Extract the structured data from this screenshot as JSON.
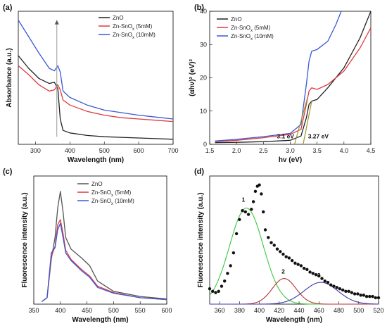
{
  "chart_data": [
    {
      "panel": "(a)",
      "type": "line",
      "xlabel": "Wavelength (nm)",
      "ylabel": "Absorbance (a.u.)",
      "xlim": [
        250,
        700
      ],
      "xticks": [
        300,
        400,
        500,
        600,
        700
      ],
      "legend": [
        "ZnO",
        "Zn-SnOx (5mM)",
        "Zn-SnOx (10mM)"
      ],
      "legend_position": "top-right",
      "series": [
        {
          "name": "ZnO",
          "color": "#222222",
          "x": [
            250,
            280,
            310,
            340,
            355,
            365,
            372,
            380,
            400,
            450,
            500,
            550,
            600,
            650,
            700
          ],
          "y": [
            0.7,
            0.6,
            0.52,
            0.48,
            0.49,
            0.44,
            0.2,
            0.11,
            0.09,
            0.07,
            0.06,
            0.055,
            0.05,
            0.045,
            0.04
          ]
        },
        {
          "name": "Zn-SnOx (5mM)",
          "color": "#e0393e",
          "x": [
            250,
            280,
            310,
            340,
            355,
            365,
            372,
            380,
            400,
            450,
            500,
            550,
            600,
            650,
            700
          ],
          "y": [
            0.62,
            0.55,
            0.47,
            0.42,
            0.43,
            0.47,
            0.43,
            0.35,
            0.31,
            0.26,
            0.23,
            0.21,
            0.2,
            0.19,
            0.18
          ]
        },
        {
          "name": "Zn-SnOx (10mM)",
          "color": "#3a58d6",
          "x": [
            250,
            280,
            310,
            340,
            355,
            365,
            372,
            380,
            400,
            450,
            500,
            550,
            600,
            650,
            700
          ],
          "y": [
            0.98,
            0.85,
            0.72,
            0.6,
            0.58,
            0.62,
            0.57,
            0.42,
            0.37,
            0.31,
            0.27,
            0.25,
            0.23,
            0.215,
            0.2
          ]
        }
      ]
    },
    {
      "panel": "(b)",
      "type": "line",
      "xlabel": "hv (eV)",
      "ylabel": "(αhν)² (eV)²",
      "xlim": [
        1.5,
        4.5
      ],
      "ylim": [
        0,
        40
      ],
      "xticks": [
        "1.5",
        "2.0",
        "2.5",
        "3.0",
        "3.5",
        "4.0",
        "4.5"
      ],
      "yticks": [
        0,
        10,
        20,
        30,
        40
      ],
      "legend": [
        "ZnO",
        "Zn-SnOx (5mM)",
        "Zn-SnOx (10mM)"
      ],
      "legend_position": "top-left",
      "annotations": [
        "3.1 eV",
        "3.27 eV"
      ],
      "series": [
        {
          "name": "ZnO",
          "color": "#222222",
          "x": [
            1.6,
            2.0,
            2.5,
            3.0,
            3.2,
            3.3,
            3.35,
            3.4,
            3.5,
            3.7,
            4.0,
            4.3,
            4.5
          ],
          "y": [
            0.5,
            0.6,
            0.8,
            1.2,
            2.5,
            8,
            12,
            13,
            13.5,
            17,
            23,
            32,
            40
          ]
        },
        {
          "name": "Zn-SnOx (5mM)",
          "color": "#e0393e",
          "x": [
            1.6,
            2.0,
            2.5,
            3.0,
            3.2,
            3.3,
            3.35,
            3.4,
            3.5,
            3.7,
            4.0,
            4.3,
            4.5
          ],
          "y": [
            0.8,
            1.2,
            2.0,
            3.0,
            4.5,
            12,
            16,
            17,
            16.5,
            18,
            22,
            29,
            35
          ]
        },
        {
          "name": "Zn-SnOx (10mM)",
          "color": "#3a58d6",
          "x": [
            1.6,
            2.0,
            2.5,
            3.0,
            3.2,
            3.3,
            3.35,
            3.4,
            3.5,
            3.7,
            3.85,
            3.95
          ],
          "y": [
            1.0,
            1.5,
            2.3,
            3.3,
            6,
            18,
            25,
            28,
            28.5,
            31,
            36,
            40
          ]
        }
      ]
    },
    {
      "panel": "(c)",
      "type": "line",
      "xlabel": "Wavelength (nm)",
      "ylabel": "Fluorescence intensity (a.u.)",
      "xlim": [
        350,
        600
      ],
      "xticks": [
        350,
        400,
        450,
        500,
        550,
        600
      ],
      "legend": [
        "ZnO",
        "Zn-SnOx (5mM)",
        "Zn-SnOx (10mM)"
      ],
      "legend_position": "top-right",
      "series": [
        {
          "name": "ZnO",
          "color": "#555555",
          "x": [
            365,
            375,
            383,
            390,
            395,
            400,
            405,
            410,
            420,
            440,
            455,
            470,
            500,
            550,
            600
          ],
          "y": [
            0.02,
            0.05,
            0.35,
            0.52,
            0.75,
            0.88,
            0.72,
            0.52,
            0.43,
            0.36,
            0.3,
            0.18,
            0.1,
            0.06,
            0.04
          ]
        },
        {
          "name": "Zn-SnOx (5mM)",
          "color": "#e0393e",
          "x": [
            365,
            375,
            383,
            390,
            395,
            400,
            405,
            410,
            420,
            440,
            455,
            470,
            500,
            550,
            600
          ],
          "y": [
            0.02,
            0.05,
            0.37,
            0.45,
            0.62,
            0.66,
            0.55,
            0.42,
            0.35,
            0.27,
            0.22,
            0.14,
            0.09,
            0.05,
            0.035
          ]
        },
        {
          "name": "Zn-SnOx (10mM)",
          "color": "#3a58d6",
          "x": [
            365,
            375,
            383,
            390,
            395,
            400,
            405,
            410,
            420,
            440,
            455,
            470,
            500,
            550,
            600
          ],
          "y": [
            0.02,
            0.05,
            0.4,
            0.44,
            0.58,
            0.63,
            0.52,
            0.4,
            0.34,
            0.26,
            0.21,
            0.13,
            0.085,
            0.05,
            0.035
          ]
        }
      ]
    },
    {
      "panel": "(d)",
      "type": "scatter",
      "xlabel": "Wavelength (nm)",
      "ylabel": "Fluorescence intensity (a.u.)",
      "xlim": [
        350,
        520
      ],
      "xticks": [
        360,
        380,
        400,
        420,
        440,
        460,
        480,
        500,
        520
      ],
      "peak_labels": [
        "1",
        "2",
        "3"
      ],
      "data": {
        "x": [
          350,
          353,
          356,
          359,
          362,
          365,
          368,
          371,
          374,
          377,
          380,
          383,
          386,
          389,
          392,
          394,
          396,
          398,
          400,
          402,
          404,
          406,
          409,
          412,
          415,
          418,
          421,
          424,
          427,
          430,
          433,
          436,
          439,
          442,
          445,
          448,
          451,
          454,
          457,
          460,
          463,
          466,
          469,
          472,
          475,
          478,
          481,
          484,
          487,
          490,
          493,
          496,
          499,
          502,
          505,
          508,
          511,
          514,
          517,
          520
        ],
        "y": [
          0.12,
          0.1,
          0.09,
          0.1,
          0.14,
          0.18,
          0.24,
          0.3,
          0.4,
          0.55,
          0.66,
          0.73,
          0.72,
          0.7,
          0.74,
          0.8,
          0.88,
          0.92,
          0.93,
          0.86,
          0.72,
          0.58,
          0.52,
          0.48,
          0.46,
          0.43,
          0.41,
          0.39,
          0.37,
          0.36,
          0.34,
          0.32,
          0.31,
          0.3,
          0.28,
          0.27,
          0.25,
          0.24,
          0.23,
          0.22,
          0.2,
          0.18,
          0.17,
          0.15,
          0.14,
          0.13,
          0.12,
          0.11,
          0.1,
          0.1,
          0.09,
          0.08,
          0.08,
          0.07,
          0.07,
          0.06,
          0.06,
          0.06,
          0.05,
          0.05
        ]
      },
      "fits": [
        {
          "name": "1",
          "color": "#3cc83c",
          "center": 387,
          "amplitude": 0.75,
          "sigma": 17
        },
        {
          "name": "2",
          "color": "#b83232",
          "center": 425,
          "amplitude": 0.2,
          "sigma": 12
        },
        {
          "name": "3",
          "color": "#3b3ba8",
          "center": 462,
          "amplitude": 0.17,
          "sigma": 17
        }
      ]
    }
  ]
}
